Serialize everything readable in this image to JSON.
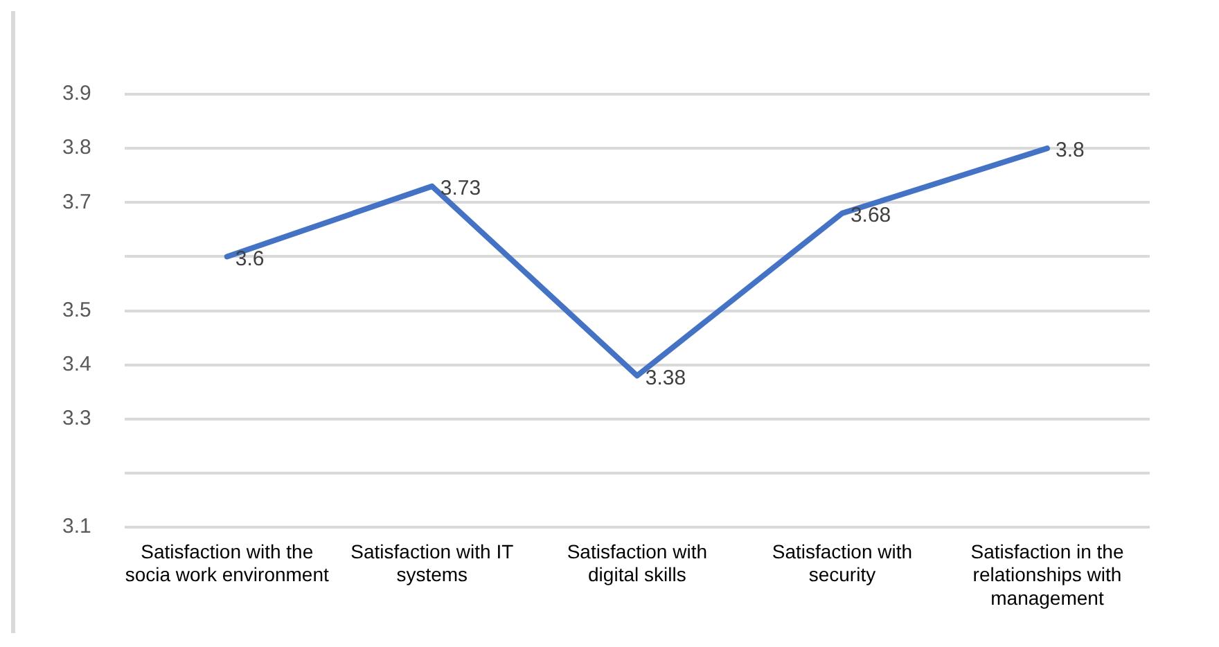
{
  "chart_data": {
    "type": "line",
    "categories": [
      "Satisfaction with the socia work environment",
      "Satisfaction with IT systems",
      "Satisfaction with digital skills",
      "Satisfaction with security",
      "Satisfaction in the relationships with management"
    ],
    "series": [
      {
        "color": "#4472c4",
        "values": [
          3.6,
          3.73,
          3.38,
          3.68,
          3.8
        ]
      }
    ],
    "ylim": [
      3.1,
      3.9
    ],
    "yticks": [
      3.1,
      {
        "value": 3.2,
        "label": null
      },
      3.3,
      3.4,
      3.5,
      {
        "value": 3.6,
        "label": null
      },
      3.7,
      3.8,
      3.9
    ],
    "grid": "y",
    "legend": false,
    "marker": "none",
    "line_style": "solid",
    "data_labels": true
  }
}
